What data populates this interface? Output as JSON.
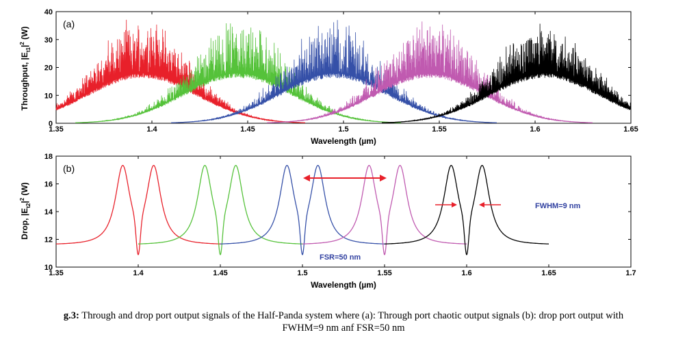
{
  "caption": {
    "label": "g.3:",
    "text": "Through and drop port output signals of the Half-Panda system where (a): Through port chaotic output signals (b): drop port output with",
    "line2": "FWHM=9 nm anf FSR=50 nm"
  },
  "chart_data": [
    {
      "type": "line",
      "panel_label": "(a)",
      "xlabel": "Wavelength (µm)",
      "ylabel": "Throughput, |E",
      "ylabel_sub": "t1",
      "ylabel_tail": "|",
      "ylabel_sup": "2",
      "ylabel_unit": " (W)",
      "xlim": [
        1.35,
        1.65
      ],
      "ylim": [
        0,
        40
      ],
      "xticks": [
        "1.35",
        "1.4",
        "1.45",
        "1.5",
        "1.55",
        "1.6",
        "1.65"
      ],
      "yticks": [
        "0",
        "10",
        "20",
        "30",
        "40"
      ],
      "series": [
        {
          "center": 1.395,
          "color": "#e8202a",
          "envelope_peak": 18,
          "chaos_max": 40
        },
        {
          "center": 1.445,
          "color": "#55c23a",
          "envelope_peak": 18,
          "chaos_max": 40
        },
        {
          "center": 1.495,
          "color": "#3550a8",
          "envelope_peak": 18,
          "chaos_max": 40
        },
        {
          "center": 1.545,
          "color": "#c05ab0",
          "envelope_peak": 18,
          "chaos_max": 40
        },
        {
          "center": 1.605,
          "color": "#000000",
          "envelope_peak": 18,
          "chaos_max": 40
        }
      ]
    },
    {
      "type": "line",
      "panel_label": "(b)",
      "xlabel": "Wavelength (µm)",
      "ylabel": "Drop, |E",
      "ylabel_sub": "t2",
      "ylabel_tail": "|",
      "ylabel_sup": "2",
      "ylabel_unit": " (W)",
      "xlim": [
        1.35,
        1.7
      ],
      "ylim": [
        10,
        18
      ],
      "xticks": [
        "1.35",
        "1.4",
        "1.45",
        "1.5",
        "1.55",
        "1.6",
        "1.65",
        "1.7"
      ],
      "yticks": [
        "10",
        "12",
        "14",
        "16",
        "18"
      ],
      "series": [
        {
          "center": 1.4,
          "color": "#e8202a",
          "peak": 17.5,
          "base": 11.6,
          "dip": 10.9
        },
        {
          "center": 1.45,
          "color": "#55c23a",
          "peak": 17.5,
          "base": 11.6,
          "dip": 10.9
        },
        {
          "center": 1.5,
          "color": "#3550a8",
          "peak": 17.5,
          "base": 11.6,
          "dip": 10.9
        },
        {
          "center": 1.55,
          "color": "#c05ab0",
          "peak": 17.5,
          "base": 11.6,
          "dip": 10.9
        },
        {
          "center": 1.6,
          "color": "#000000",
          "peak": 17.5,
          "base": 11.6,
          "dip": 10.9
        }
      ],
      "annotations": {
        "fwhm": "FWHM=9 nm",
        "fsr": "FSR=50 nm",
        "fwhm_color": "#3040a0",
        "fsr_color": "#3040a0",
        "arrow_color": "#e8202a"
      }
    }
  ]
}
